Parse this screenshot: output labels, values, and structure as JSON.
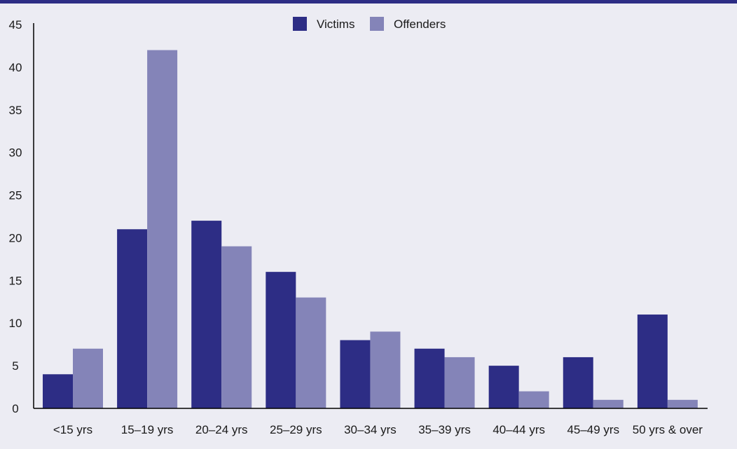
{
  "colors": {
    "background": "#ececf3",
    "top_rule": "#2d2d85",
    "victims": "#2d2d85",
    "offenders": "#8484b8",
    "axis": "#000000"
  },
  "chart_data": {
    "type": "bar",
    "categories": [
      "<15 yrs",
      "15–19 yrs",
      "20–24 yrs",
      "25–29 yrs",
      "30–34 yrs",
      "35–39 yrs",
      "40–44 yrs",
      "45–49 yrs",
      "50 yrs & over"
    ],
    "series": [
      {
        "name": "Victims",
        "values": [
          4,
          21,
          22,
          16,
          8,
          7,
          5,
          6,
          11
        ]
      },
      {
        "name": "Offenders",
        "values": [
          7,
          42,
          19,
          13,
          9,
          6,
          2,
          1,
          1
        ]
      }
    ],
    "ylim": [
      0,
      45
    ],
    "yticks": [
      0,
      5,
      10,
      15,
      20,
      25,
      30,
      35,
      40,
      45
    ],
    "title": "",
    "xlabel": "",
    "ylabel": "",
    "legend_position": "top-center",
    "grid": false
  }
}
